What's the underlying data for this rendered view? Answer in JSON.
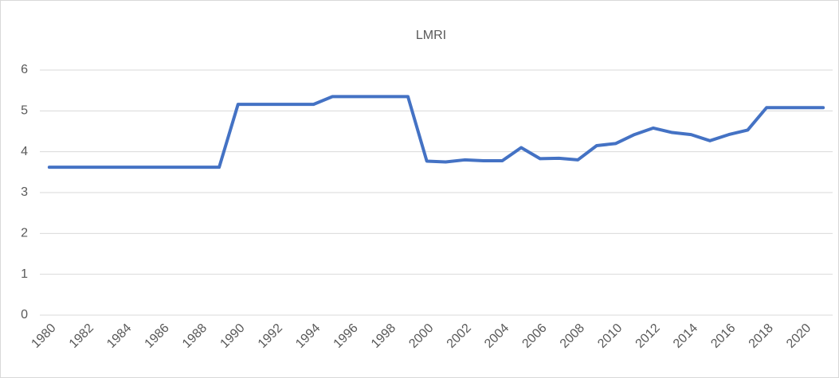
{
  "chart_data": {
    "type": "line",
    "title": "LMRI",
    "categories": [
      "1980",
      null,
      "1982",
      null,
      "1984",
      null,
      "1986",
      null,
      "1988",
      null,
      "1990",
      null,
      "1992",
      null,
      "1994",
      null,
      "1996",
      null,
      "1998",
      null,
      "2000",
      null,
      "2002",
      null,
      "2004",
      null,
      "2006",
      null,
      "2008",
      null,
      "2010",
      null,
      "2012",
      null,
      "2014",
      null,
      "2016",
      null,
      "2018",
      null,
      "2020",
      null
    ],
    "series": [
      {
        "name": "LMRI",
        "color": "#4472c4",
        "values": [
          3.62,
          3.62,
          3.62,
          3.62,
          3.62,
          3.62,
          3.62,
          3.62,
          3.62,
          3.62,
          5.16,
          5.16,
          5.16,
          5.16,
          5.16,
          5.35,
          5.35,
          5.35,
          5.35,
          5.35,
          3.77,
          3.75,
          3.8,
          3.78,
          3.78,
          4.1,
          3.83,
          3.84,
          3.8,
          4.15,
          4.2,
          4.42,
          4.58,
          4.47,
          4.42,
          4.27,
          4.42,
          4.53,
          5.08,
          5.08,
          5.08,
          5.08
        ]
      }
    ],
    "ylim": [
      0,
      6
    ],
    "yticks": [
      0,
      1,
      2,
      3,
      4,
      5,
      6
    ],
    "grid": true
  }
}
